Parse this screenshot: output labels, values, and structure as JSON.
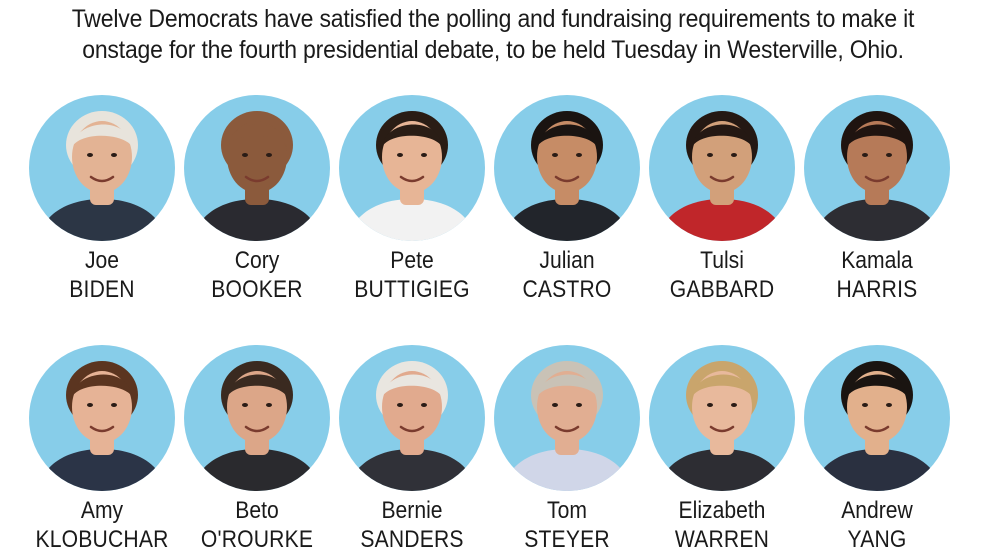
{
  "intro": {
    "line1": "Twelve Democrats have satisfied the polling and fundraising requirements to make it",
    "line2": "onstage for the fourth presidential debate, to be held Tuesday in Westerville, Ohio."
  },
  "colors": {
    "portrait_background": "#87cde9"
  },
  "candidates": [
    {
      "first": "Joe",
      "last": "BIDEN",
      "icon": "person-portrait-icon",
      "hair": "#e8e4dc",
      "skin": "#e3b394",
      "shirt": "#2c3645"
    },
    {
      "first": "Cory",
      "last": "BOOKER",
      "icon": "person-portrait-icon",
      "hair": "#8b5a3c",
      "skin": "#8b5a3c",
      "shirt": "#2a2a30"
    },
    {
      "first": "Pete",
      "last": "BUTTIGIEG",
      "icon": "person-portrait-icon",
      "hair": "#2a1d15",
      "skin": "#e7b596",
      "shirt": "#f2f2f2"
    },
    {
      "first": "Julian",
      "last": "CASTRO",
      "icon": "person-portrait-icon",
      "hair": "#1a1411",
      "skin": "#c68c66",
      "shirt": "#22252b"
    },
    {
      "first": "Tulsi",
      "last": "GABBARD",
      "icon": "person-portrait-icon",
      "hair": "#241813",
      "skin": "#d2a07a",
      "shirt": "#c0262a"
    },
    {
      "first": "Kamala",
      "last": "HARRIS",
      "icon": "person-portrait-icon",
      "hair": "#1f1410",
      "skin": "#b67a58",
      "shirt": "#2d2d33"
    },
    {
      "first": "Amy",
      "last": "KLOBUCHAR",
      "icon": "person-portrait-icon",
      "hair": "#5b3520",
      "skin": "#e6b396",
      "shirt": "#2b3447"
    },
    {
      "first": "Beto",
      "last": "O'ROURKE",
      "icon": "person-portrait-icon",
      "hair": "#3a2a20",
      "skin": "#dca688",
      "shirt": "#2a2a2e"
    },
    {
      "first": "Bernie",
      "last": "SANDERS",
      "icon": "person-portrait-icon",
      "hair": "#e9e6e0",
      "skin": "#e1aa8e",
      "shirt": "#303138"
    },
    {
      "first": "Tom",
      "last": "STEYER",
      "icon": "person-portrait-icon",
      "hair": "#c9c2b6",
      "skin": "#e1ae92",
      "shirt": "#d0d6e8"
    },
    {
      "first": "Elizabeth",
      "last": "WARREN",
      "icon": "person-portrait-icon",
      "hair": "#c9a56c",
      "skin": "#e8b99c",
      "shirt": "#2d2d33"
    },
    {
      "first": "Andrew",
      "last": "YANG",
      "icon": "person-portrait-icon",
      "hair": "#1a1411",
      "skin": "#e2b08c",
      "shirt": "#2a3040"
    }
  ]
}
